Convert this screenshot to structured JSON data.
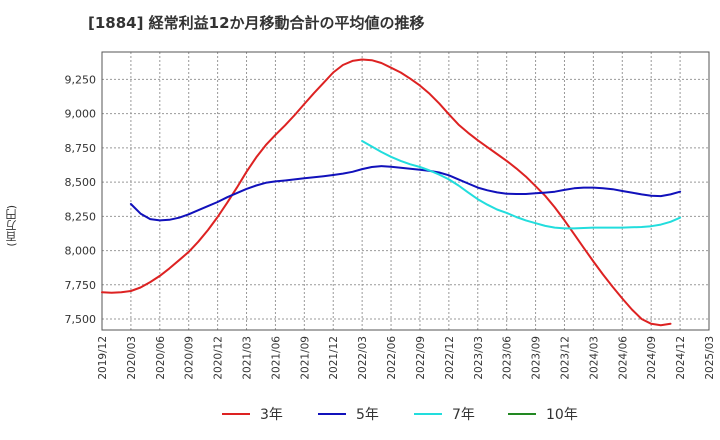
{
  "chart_data": {
    "type": "line",
    "title": "[1884]  経常利益12か月移動合計の平均値の推移",
    "ylabel": "(百万円)",
    "xlabel": "",
    "ylim": [
      7420,
      9450
    ],
    "yticks": [
      7500,
      7750,
      8000,
      8250,
      8500,
      8750,
      9000,
      9250
    ],
    "ytick_labels": [
      "7,500",
      "7,750",
      "8,000",
      "8,250",
      "8,500",
      "8,750",
      "9,000",
      "9,250"
    ],
    "xticks": [
      "2019/12",
      "2020/03",
      "2020/06",
      "2020/09",
      "2020/12",
      "2021/03",
      "2021/06",
      "2021/09",
      "2021/12",
      "2022/03",
      "2022/06",
      "2022/09",
      "2022/12",
      "2023/03",
      "2023/06",
      "2023/09",
      "2023/12",
      "2024/03",
      "2024/06",
      "2024/09",
      "2024/12",
      "2025/03"
    ],
    "grid": true,
    "legend_position": "bottom",
    "series": [
      {
        "name": "3年",
        "color": "#dd2222",
        "x": [
          "2019/12",
          "2020/01",
          "2020/02",
          "2020/03",
          "2020/04",
          "2020/05",
          "2020/06",
          "2020/07",
          "2020/08",
          "2020/09",
          "2020/10",
          "2020/11",
          "2020/12",
          "2021/01",
          "2021/02",
          "2021/03",
          "2021/04",
          "2021/05",
          "2021/06",
          "2021/07",
          "2021/08",
          "2021/09",
          "2021/10",
          "2021/11",
          "2021/12",
          "2022/01",
          "2022/02",
          "2022/03",
          "2022/04",
          "2022/05",
          "2022/06",
          "2022/07",
          "2022/08",
          "2022/09",
          "2022/10",
          "2022/11",
          "2022/12",
          "2023/01",
          "2023/02",
          "2023/03",
          "2023/04",
          "2023/05",
          "2023/06",
          "2023/07",
          "2023/08",
          "2023/09",
          "2023/10",
          "2023/11",
          "2023/12",
          "2024/01",
          "2024/02",
          "2024/03",
          "2024/04",
          "2024/05",
          "2024/06",
          "2024/07",
          "2024/08",
          "2024/09",
          "2024/10",
          "2024/11",
          "2024/12"
        ],
        "values": [
          7695,
          7692,
          7695,
          7705,
          7730,
          7770,
          7815,
          7870,
          7930,
          7990,
          8065,
          8150,
          8245,
          8350,
          8460,
          8575,
          8680,
          8770,
          8845,
          8915,
          8990,
          9070,
          9150,
          9225,
          9300,
          9355,
          9385,
          9395,
          9390,
          9370,
          9335,
          9300,
          9255,
          9205,
          9145,
          9075,
          8995,
          8920,
          8860,
          8805,
          8755,
          8705,
          8655,
          8600,
          8540,
          8470,
          8400,
          8315,
          8220,
          8120,
          8020,
          7920,
          7825,
          7735,
          7650,
          7570,
          7500,
          7465,
          7455,
          7465,
          null
        ]
      },
      {
        "name": "5年",
        "color": "#1111bb",
        "x": [
          "2020/03",
          "2020/04",
          "2020/05",
          "2020/06",
          "2020/07",
          "2020/08",
          "2020/09",
          "2020/10",
          "2020/11",
          "2020/12",
          "2021/01",
          "2021/02",
          "2021/03",
          "2021/04",
          "2021/05",
          "2021/06",
          "2021/07",
          "2021/08",
          "2021/09",
          "2021/10",
          "2021/11",
          "2021/12",
          "2022/01",
          "2022/02",
          "2022/03",
          "2022/04",
          "2022/05",
          "2022/06",
          "2022/07",
          "2022/08",
          "2022/09",
          "2022/10",
          "2022/11",
          "2022/12",
          "2023/01",
          "2023/02",
          "2023/03",
          "2023/04",
          "2023/05",
          "2023/06",
          "2023/07",
          "2023/08",
          "2023/09",
          "2023/10",
          "2023/11",
          "2023/12",
          "2024/01",
          "2024/02",
          "2024/03",
          "2024/04",
          "2024/05",
          "2024/06",
          "2024/07",
          "2024/08",
          "2024/09",
          "2024/10",
          "2024/11",
          "2024/12"
        ],
        "values": [
          8340,
          8270,
          8230,
          8220,
          8225,
          8240,
          8265,
          8295,
          8325,
          8355,
          8390,
          8420,
          8450,
          8475,
          8495,
          8505,
          8512,
          8520,
          8528,
          8535,
          8543,
          8552,
          8562,
          8575,
          8595,
          8610,
          8617,
          8612,
          8605,
          8598,
          8590,
          8582,
          8570,
          8550,
          8520,
          8490,
          8460,
          8440,
          8425,
          8415,
          8413,
          8413,
          8418,
          8423,
          8430,
          8443,
          8455,
          8460,
          8460,
          8455,
          8448,
          8435,
          8423,
          8410,
          8400,
          8398,
          8410,
          8430
        ]
      },
      {
        "name": "7年",
        "color": "#22dddd",
        "x": [
          "2022/03",
          "2022/04",
          "2022/05",
          "2022/06",
          "2022/07",
          "2022/08",
          "2022/09",
          "2022/10",
          "2022/11",
          "2022/12",
          "2023/01",
          "2023/02",
          "2023/03",
          "2023/04",
          "2023/05",
          "2023/06",
          "2023/07",
          "2023/08",
          "2023/09",
          "2023/10",
          "2023/11",
          "2023/12",
          "2024/01",
          "2024/02",
          "2024/03",
          "2024/04",
          "2024/05",
          "2024/06",
          "2024/07",
          "2024/08",
          "2024/09",
          "2024/10",
          "2024/11",
          "2024/12"
        ],
        "values": [
          8800,
          8760,
          8720,
          8685,
          8655,
          8630,
          8610,
          8585,
          8555,
          8520,
          8475,
          8425,
          8375,
          8335,
          8300,
          8275,
          8245,
          8220,
          8200,
          8180,
          8168,
          8162,
          8162,
          8165,
          8168,
          8168,
          8168,
          8168,
          8170,
          8172,
          8178,
          8190,
          8210,
          8240
        ]
      },
      {
        "name": "10年",
        "color": "#228822",
        "x": [],
        "values": []
      }
    ]
  }
}
